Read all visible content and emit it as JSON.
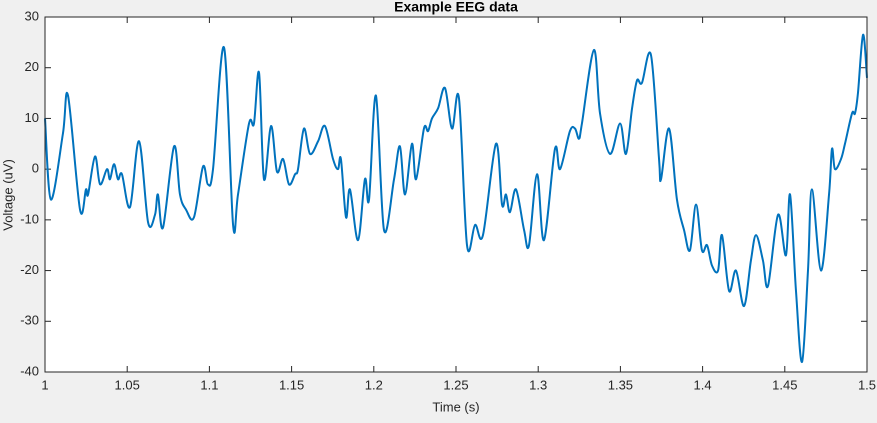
{
  "chart_data": {
    "type": "line",
    "title": "Example EEG data",
    "x_label": "Time (s)",
    "y_label": "Voltage (uV)",
    "xlim": [
      1,
      1.5
    ],
    "ylim": [
      -40,
      30
    ],
    "xticks": [
      1,
      1.05,
      1.1,
      1.15,
      1.2,
      1.25,
      1.3,
      1.35,
      1.4,
      1.45,
      1.5
    ],
    "yticks": [
      -40,
      -30,
      -20,
      -10,
      0,
      10,
      20,
      30
    ],
    "grid": false,
    "series": [
      {
        "color": "#0072bd",
        "x": [
          1.0,
          1.0036,
          1.0109,
          1.014,
          1.0213,
          1.0249,
          1.0262,
          1.0304,
          1.0335,
          1.0377,
          1.0395,
          1.042,
          1.0444,
          1.0468,
          1.0517,
          1.0572,
          1.0627,
          1.0669,
          1.0687,
          1.0718,
          1.0785,
          1.0821,
          1.0858,
          1.0906,
          1.0961,
          1.0991,
          1.1022,
          1.1089,
          1.1144,
          1.1174,
          1.1241,
          1.1271,
          1.1302,
          1.1332,
          1.1375,
          1.1411,
          1.1448,
          1.1484,
          1.1521,
          1.1539,
          1.1575,
          1.1612,
          1.1661,
          1.1703,
          1.1752,
          1.1782,
          1.18,
          1.1831,
          1.1855,
          1.1904,
          1.1946,
          1.1971,
          1.2013,
          1.2062,
          1.2123,
          1.2159,
          1.219,
          1.2232,
          1.2257,
          1.2305,
          1.233,
          1.2354,
          1.2391,
          1.2433,
          1.2476,
          1.2518,
          1.2567,
          1.2616,
          1.2664,
          1.2743,
          1.278,
          1.2804,
          1.2828,
          1.2865,
          1.2914,
          1.2944,
          1.2993,
          1.3035,
          1.3102,
          1.3133,
          1.3193,
          1.3224,
          1.3248,
          1.3266,
          1.3339,
          1.3376,
          1.3437,
          1.3498,
          1.3534,
          1.3571,
          1.3601,
          1.3631,
          1.3686,
          1.3735,
          1.3747,
          1.3796,
          1.3844,
          1.3887,
          1.3923,
          1.396,
          1.3996,
          1.4027,
          1.4057,
          1.4094,
          1.4118,
          1.4161,
          1.4203,
          1.4252,
          1.4294,
          1.4325,
          1.4367,
          1.4398,
          1.4459,
          1.4507,
          1.4532,
          1.4568,
          1.4605,
          1.4641,
          1.4665,
          1.472,
          1.4769,
          1.4787,
          1.4805,
          1.4842,
          1.4866,
          1.4909,
          1.4927,
          1.4945,
          1.4976,
          1.5
        ],
        "values": [
          10,
          -6,
          7,
          14.5,
          -8,
          -4,
          -5,
          2.5,
          -3,
          0,
          -2,
          1,
          -2,
          -1,
          -7.5,
          5.5,
          -10.5,
          -9,
          -5,
          -11.5,
          4.5,
          -5,
          -8,
          -9.5,
          0.5,
          -3,
          0,
          24,
          -11,
          -5,
          9,
          9,
          19,
          -2,
          8.5,
          -0.5,
          2,
          -3,
          -1,
          0,
          8,
          3,
          5.5,
          8.5,
          2,
          0,
          2,
          -9.5,
          -4,
          -14,
          -2,
          -6,
          14.5,
          -12,
          -2,
          4.5,
          -5,
          5,
          -2,
          8,
          7.5,
          10,
          12,
          16,
          8,
          14,
          -15,
          -11,
          -13,
          5,
          -7,
          -5,
          -8.5,
          -4,
          -12,
          -15,
          -1,
          -14,
          4,
          0,
          7.5,
          8,
          6,
          9,
          23.5,
          11,
          3,
          9,
          3,
          12,
          17.5,
          17,
          22.5,
          2,
          -2,
          8,
          -6,
          -12,
          -16,
          -7,
          -16,
          -15,
          -19,
          -20,
          -13,
          -24,
          -20,
          -27,
          -18,
          -13,
          -18,
          -23,
          -9,
          -17,
          -5,
          -24,
          -38,
          -20,
          -4,
          -20,
          -5,
          4,
          0,
          2,
          5,
          11,
          11,
          15,
          26.5,
          18
        ]
      }
    ]
  }
}
